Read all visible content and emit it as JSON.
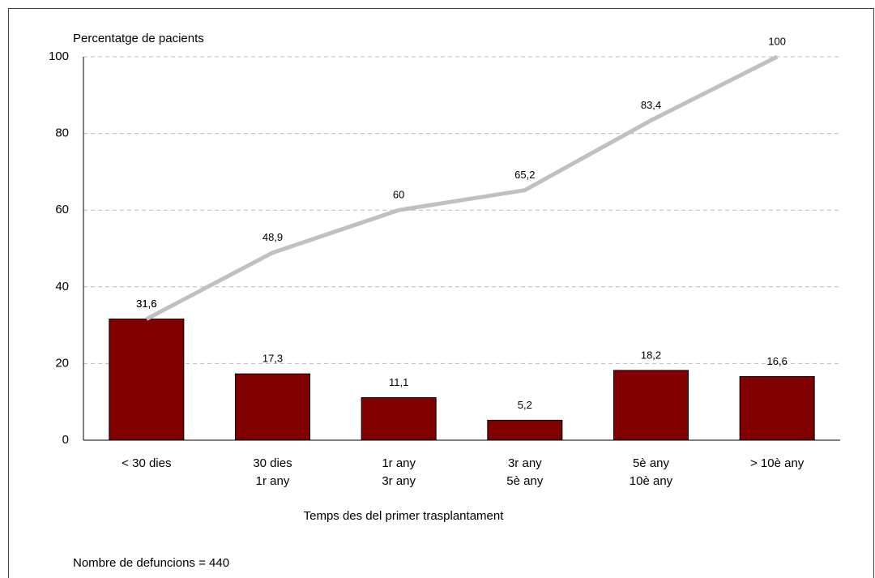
{
  "chart_data": {
    "type": "bar",
    "y_label": "Percentatge de pacients",
    "x_label": "Temps des del primer trasplantament",
    "note": "Nombre de defuncions = 440",
    "categories": [
      [
        "< 30 dies"
      ],
      [
        "30 dies",
        "1r any"
      ],
      [
        "1r any",
        "3r any"
      ],
      [
        "3r any",
        "5è any"
      ],
      [
        "5è any",
        "10è any"
      ],
      [
        "> 10è any"
      ]
    ],
    "series": [
      {
        "type": "bar",
        "color": "#800000",
        "values": [
          31.6,
          17.3,
          11.1,
          5.2,
          18.2,
          16.6
        ],
        "value_labels": [
          "31,6",
          "17,3",
          "11,1",
          "5,2",
          "18,2",
          "16,6"
        ]
      },
      {
        "type": "line",
        "color": "#c0c0c0",
        "values": [
          31.6,
          48.9,
          60,
          65.2,
          83.4,
          100
        ],
        "value_labels": [
          "31,6",
          "48,9",
          "60",
          "65,2",
          "83,4",
          "100"
        ]
      }
    ],
    "ylim": [
      0,
      100
    ],
    "yticks": [
      0,
      20,
      40,
      60,
      80,
      100
    ],
    "grid": true
  }
}
